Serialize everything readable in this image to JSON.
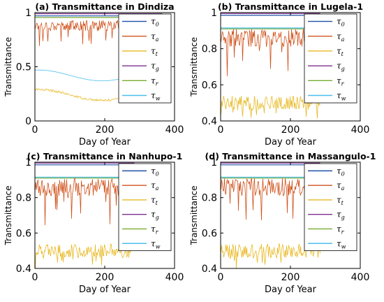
{
  "colors": {
    "tau0": "#1f4fa8",
    "taua": "#d0521c",
    "taut": "#e8b923",
    "taug": "#7e2f8e",
    "taur": "#77ac30",
    "tauw": "#4dbeee"
  },
  "chart_data": [
    {
      "type": "line",
      "title": "(a) Transmittance in Dindiza",
      "xlabel": "Day of Year",
      "ylabel": "Transmittance",
      "xlim": [
        0,
        400
      ],
      "ylim": [
        0,
        1
      ],
      "xticks": [
        "0",
        "200",
        "400"
      ],
      "yticks": [
        "0",
        "0.5",
        "1"
      ],
      "legend_position": "right",
      "legend": [
        "τ0",
        "τa",
        "τt",
        "τg",
        "τr",
        "τw"
      ],
      "x_range": [
        1,
        365
      ],
      "series": [
        {
          "name": "τ0",
          "kind": "const",
          "value": 0.97
        },
        {
          "name": "τa",
          "kind": "noisy",
          "base": 0.88,
          "amp": 0.05,
          "spikes": 0.18
        },
        {
          "name": "τt",
          "kind": "seasonal",
          "base": 0.24,
          "amp": 0.05,
          "noise": 0.01
        },
        {
          "name": "τg",
          "kind": "const",
          "value": 0.99
        },
        {
          "name": "τr",
          "kind": "const",
          "value": 0.955
        },
        {
          "name": "τw",
          "kind": "seasonal",
          "base": 0.42,
          "amp": 0.05,
          "noise": 0.0
        }
      ]
    },
    {
      "type": "line",
      "title": "(b) Transmittance in Lugela-1",
      "xlabel": "Day of Year",
      "ylabel": "Transmittance",
      "xlim": [
        0,
        400
      ],
      "ylim": [
        0.4,
        1
      ],
      "xticks": [
        "0",
        "200",
        "400"
      ],
      "yticks": [
        "0.4",
        "0.6",
        "0.8",
        "1"
      ],
      "legend_position": "right",
      "legend": [
        "τ0",
        "τa",
        "τt",
        "τg",
        "τr",
        "τw"
      ],
      "x_range": [
        1,
        285
      ],
      "series": [
        {
          "name": "τ0",
          "kind": "const",
          "value": 0.985
        },
        {
          "name": "τa",
          "kind": "noisy",
          "base": 0.86,
          "amp": 0.05,
          "spikes": 0.2
        },
        {
          "name": "τt",
          "kind": "noisy",
          "base": 0.5,
          "amp": 0.04,
          "spikes": 0.08
        },
        {
          "name": "τg",
          "kind": "const",
          "value": 0.995
        },
        {
          "name": "τr",
          "kind": "const",
          "value": 0.91
        },
        {
          "name": "τw",
          "kind": "const",
          "value": 0.915
        }
      ]
    },
    {
      "type": "line",
      "title": "(c) Transmittance in Nanhupo-1",
      "xlabel": "Day of Year",
      "ylabel": "Transmittance",
      "xlim": [
        0,
        400
      ],
      "ylim": [
        0.4,
        1
      ],
      "xticks": [
        "0",
        "200",
        "400"
      ],
      "yticks": [
        "0.4",
        "0.6",
        "0.8",
        "1"
      ],
      "legend_position": "right",
      "legend": [
        "τ0",
        "τa",
        "τt",
        "τg",
        "τr",
        "τw"
      ],
      "x_range": [
        1,
        285
      ],
      "series": [
        {
          "name": "τ0",
          "kind": "const",
          "value": 0.985
        },
        {
          "name": "τa",
          "kind": "noisy",
          "base": 0.86,
          "amp": 0.05,
          "spikes": 0.2
        },
        {
          "name": "τt",
          "kind": "noisy",
          "base": 0.5,
          "amp": 0.04,
          "spikes": 0.08
        },
        {
          "name": "τg",
          "kind": "const",
          "value": 0.995
        },
        {
          "name": "τr",
          "kind": "const",
          "value": 0.91
        },
        {
          "name": "τw",
          "kind": "const",
          "value": 0.915
        }
      ]
    },
    {
      "type": "line",
      "title": "(d) Transmittance in Massangulo-1",
      "xlabel": "Day of Year",
      "ylabel": "Transmittance",
      "xlim": [
        0,
        400
      ],
      "ylim": [
        0.4,
        1
      ],
      "xticks": [
        "0",
        "200",
        "400"
      ],
      "yticks": [
        "0.4",
        "0.6",
        "0.8",
        "1"
      ],
      "legend_position": "right",
      "legend": [
        "τ0",
        "τa",
        "τt",
        "τg",
        "τr",
        "τw"
      ],
      "x_range": [
        1,
        285
      ],
      "series": [
        {
          "name": "τ0",
          "kind": "const",
          "value": 0.985
        },
        {
          "name": "τa",
          "kind": "noisy",
          "base": 0.86,
          "amp": 0.05,
          "spikes": 0.2
        },
        {
          "name": "τt",
          "kind": "noisy",
          "base": 0.5,
          "amp": 0.04,
          "spikes": 0.08
        },
        {
          "name": "τg",
          "kind": "const",
          "value": 0.995
        },
        {
          "name": "τr",
          "kind": "const",
          "value": 0.91
        },
        {
          "name": "τw",
          "kind": "const",
          "value": 0.915
        }
      ]
    }
  ]
}
